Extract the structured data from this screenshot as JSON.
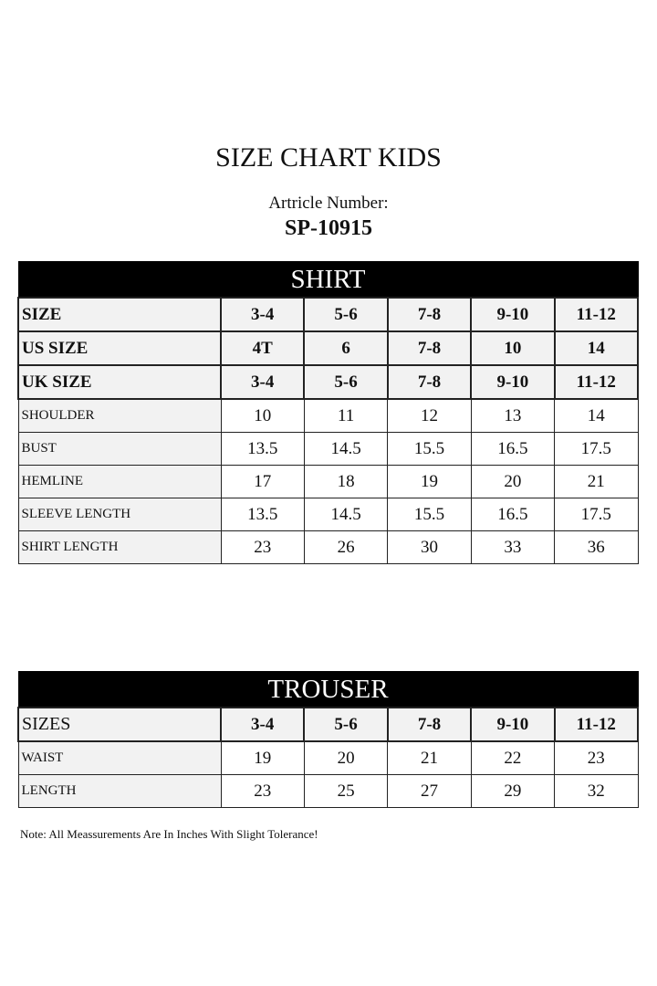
{
  "title": "SIZE CHART KIDS",
  "article_label": "Artricle Number:",
  "article_number": "SP-10915",
  "shirt": {
    "heading": "SHIRT",
    "header_rows": [
      {
        "label": "SIZE",
        "values": [
          "3-4",
          "5-6",
          "7-8",
          "9-10",
          "11-12"
        ]
      },
      {
        "label": "US SIZE",
        "values": [
          "4T",
          "6",
          "7-8",
          "10",
          "14"
        ]
      },
      {
        "label": "UK SIZE",
        "values": [
          "3-4",
          "5-6",
          "7-8",
          "9-10",
          "11-12"
        ]
      }
    ],
    "rows": [
      {
        "label": "SHOULDER",
        "values": [
          "10",
          "11",
          "12",
          "13",
          "14"
        ]
      },
      {
        "label": "BUST",
        "values": [
          "13.5",
          "14.5",
          "15.5",
          "16.5",
          "17.5"
        ]
      },
      {
        "label": "HEMLINE",
        "values": [
          "17",
          "18",
          "19",
          "20",
          "21"
        ]
      },
      {
        "label": "SLEEVE LENGTH",
        "values": [
          "13.5",
          "14.5",
          "15.5",
          "16.5",
          "17.5"
        ]
      },
      {
        "label": "SHIRT LENGTH",
        "values": [
          "23",
          "26",
          "30",
          "33",
          "36"
        ]
      }
    ]
  },
  "trouser": {
    "heading": "TROUSER",
    "header_rows": [
      {
        "label": "SIZES",
        "values": [
          "3-4",
          "5-6",
          "7-8",
          "9-10",
          "11-12"
        ]
      }
    ],
    "rows": [
      {
        "label": "WAIST",
        "values": [
          "19",
          "20",
          "21",
          "22",
          "23"
        ]
      },
      {
        "label": "LENGTH",
        "values": [
          "23",
          "25",
          "27",
          "29",
          "32"
        ]
      }
    ]
  },
  "note": "Note: All Meassurements Are In Inches With Slight Tolerance!"
}
